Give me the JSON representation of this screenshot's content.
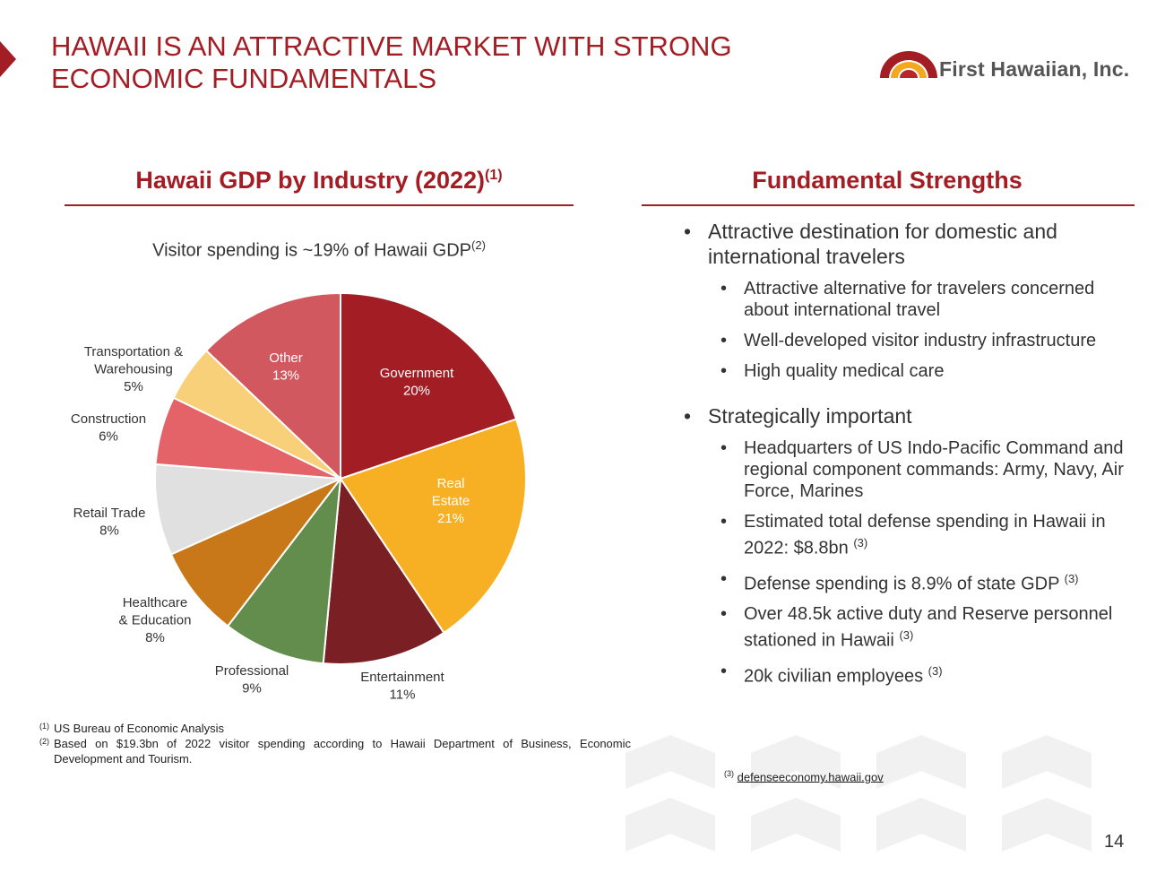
{
  "header": {
    "title_line1": "HAWAII IS AN ATTRACTIVE MARKET WITH STRONG",
    "title_line2": "ECONOMIC FUNDAMENTALS",
    "brand": "First Hawaiian, Inc."
  },
  "left_section": {
    "title": "Hawaii GDP by Industry (2022)",
    "title_ref": "(1)",
    "note": "Visitor spending is ~19% of Hawaii GDP",
    "note_ref": "(2)"
  },
  "chart_data": {
    "type": "pie",
    "title": "Hawaii GDP by Industry (2022)",
    "slices": [
      {
        "label_lines": [
          "Government"
        ],
        "pct_label": "20%",
        "value": 20,
        "color": "#a31d24",
        "text_color": "#ffffff",
        "inside": true
      },
      {
        "label_lines": [
          "Real",
          "Estate"
        ],
        "pct_label": "21%",
        "value": 21,
        "color": "#f7af24",
        "text_color": "#ffffff",
        "inside": true
      },
      {
        "label_lines": [
          "Entertainment"
        ],
        "pct_label": "11%",
        "value": 11,
        "color": "#7a1f24",
        "text_color": "#333333",
        "inside": false
      },
      {
        "label_lines": [
          "Professional"
        ],
        "pct_label": "9%",
        "value": 9,
        "color": "#638d4c",
        "text_color": "#333333",
        "inside": false
      },
      {
        "label_lines": [
          "Healthcare",
          "& Education"
        ],
        "pct_label": "8%",
        "value": 8,
        "color": "#c87819",
        "text_color": "#333333",
        "inside": false
      },
      {
        "label_lines": [
          "Retail Trade"
        ],
        "pct_label": "8%",
        "value": 8,
        "color": "#e0e0e0",
        "text_color": "#333333",
        "inside": false
      },
      {
        "label_lines": [
          "Construction"
        ],
        "pct_label": "6%",
        "value": 6,
        "color": "#e46369",
        "text_color": "#333333",
        "inside": false
      },
      {
        "label_lines": [
          "Transportation &",
          "Warehousing"
        ],
        "pct_label": "5%",
        "value": 5,
        "color": "#f9d07a",
        "text_color": "#333333",
        "inside": false
      },
      {
        "label_lines": [
          "Other"
        ],
        "pct_label": "13%",
        "value": 13,
        "color": "#d2585f",
        "text_color": "#ffffff",
        "inside": true
      }
    ]
  },
  "right_section": {
    "title": "Fundamental Strengths",
    "groups": [
      {
        "main": "Attractive destination for domestic and international travelers",
        "subs": [
          {
            "text": "Attractive alternative for travelers concerned about international travel",
            "ref": ""
          },
          {
            "text": "Well-developed visitor industry infrastructure",
            "ref": ""
          },
          {
            "text": "High quality medical care",
            "ref": ""
          }
        ]
      },
      {
        "main": "Strategically important",
        "subs": [
          {
            "text": "Headquarters of US Indo-Pacific Command and regional component commands:  Army, Navy, Air Force, Marines",
            "ref": ""
          },
          {
            "text": "Estimated total defense spending in Hawaii in 2022:  $8.8bn",
            "ref": "(3)"
          },
          {
            "text": "Defense spending is 8.9% of state GDP",
            "ref": "(3)"
          },
          {
            "text": "Over 48.5k active duty and Reserve personnel stationed in Hawaii",
            "ref": "(3)"
          },
          {
            "text": "20k civilian employees",
            "ref": "(3)"
          }
        ]
      }
    ]
  },
  "footnotes": [
    {
      "ref": "(1)",
      "text": "US Bureau of Economic Analysis"
    },
    {
      "ref": "(2)",
      "text": "Based on $19.3bn of 2022 visitor spending according to Hawaii Department of Business, Economic Development and Tourism."
    }
  ],
  "source3": {
    "ref": "(3)",
    "text": "defenseeconomy.hawaii.gov"
  },
  "page_number": "14"
}
